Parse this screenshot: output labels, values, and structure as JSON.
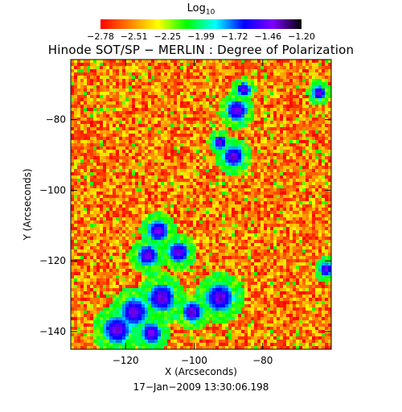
{
  "colorbar": {
    "title_main": "Log",
    "title_sub": "10",
    "tick_labels": [
      "−2.78",
      "−2.51",
      "−2.25",
      "−1.99",
      "−1.72",
      "−1.46",
      "−1.20"
    ],
    "colors": [
      "#ff0000",
      "#ff8000",
      "#ffff00",
      "#00ff00",
      "#00ffff",
      "#0000ff",
      "#8000ff",
      "#000000"
    ]
  },
  "chart_data": {
    "type": "heatmap",
    "title": "Hinode SOT/SP − MERLIN : Degree of Polarization",
    "xlabel": "X (Arcseconds)",
    "ylabel": "Y (Arcseconds)",
    "xlim": [
      -136,
      -60
    ],
    "ylim": [
      -145,
      -63
    ],
    "xticks": [
      -120,
      -100,
      -80
    ],
    "yticks": [
      -80,
      -100,
      -120,
      -140
    ],
    "xtick_labels": [
      "−120",
      "−100",
      "−80"
    ],
    "ytick_labels": [
      "−80",
      "−100",
      "−120",
      "−140"
    ],
    "value_range": [
      -2.78,
      -1.2
    ],
    "value_scale": "log10",
    "grid": false
  },
  "timestamp": "17−Jan−2009 13:30:06.198"
}
